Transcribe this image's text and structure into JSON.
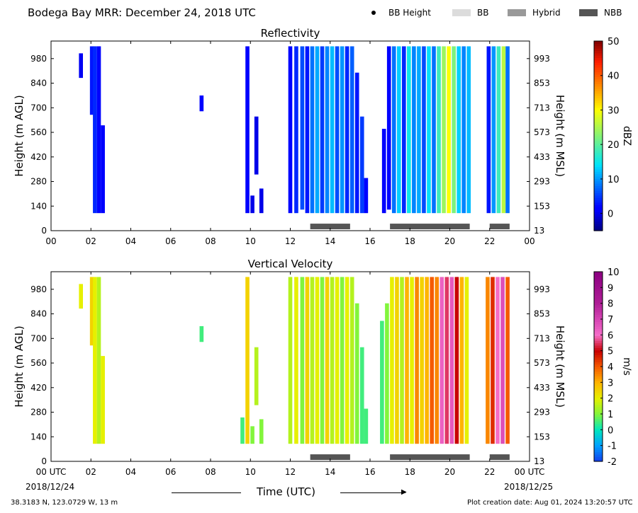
{
  "header": {
    "title": "Bodega Bay MRR:  December 24, 2018 UTC",
    "legend": [
      {
        "label": "BB Height",
        "kind": "dot",
        "color": "#000000"
      },
      {
        "label": "BB",
        "kind": "swatch",
        "color": "#dcdcdc"
      },
      {
        "label": "Hybrid",
        "kind": "swatch",
        "color": "#999999"
      },
      {
        "label": "NBB",
        "kind": "swatch",
        "color": "#555555"
      }
    ]
  },
  "footer": {
    "xaxis_label": "Time (UTC)",
    "start_date": "2018/12/24",
    "end_date": "2018/12/25",
    "location": "38.3183 N, 123.0729 W, 13 m",
    "creation": "Plot creation date: Aug 01, 2024 13:20:57 UTC"
  },
  "chart_data": [
    {
      "type": "heatmap",
      "title": "Reflectivity",
      "ylabel": "Height (m AGL)",
      "y2label": "Height (m MSL)",
      "xlim": [
        0,
        24
      ],
      "ylim": [
        0,
        1080
      ],
      "x_ticks": [
        "00",
        "02",
        "04",
        "06",
        "08",
        "10",
        "12",
        "14",
        "16",
        "18",
        "20",
        "22",
        "00"
      ],
      "y_ticks": [
        0,
        140,
        280,
        420,
        560,
        700,
        840,
        980
      ],
      "y2_ticks": [
        13,
        153,
        293,
        433,
        573,
        713,
        853,
        993
      ],
      "colorbar": {
        "label": "dBZ",
        "min": -5,
        "max": 50,
        "ticks": [
          0,
          10,
          20,
          30,
          40,
          50
        ]
      },
      "data_columns": [
        {
          "t": 1.5,
          "v": 0.5,
          "bot": 870,
          "top": 1010
        },
        {
          "t": 2.05,
          "v": 3,
          "bot": 660,
          "top": 1050
        },
        {
          "t": 2.2,
          "v": 4,
          "bot": 100,
          "top": 1050
        },
        {
          "t": 2.4,
          "v": 2,
          "bot": 100,
          "top": 1050
        },
        {
          "t": 2.6,
          "v": 1,
          "bot": 100,
          "top": 600
        },
        {
          "t": 7.55,
          "v": 2,
          "bot": 680,
          "top": 770
        },
        {
          "t": 9.85,
          "v": 1,
          "bot": 100,
          "top": 1050
        },
        {
          "t": 10.1,
          "v": 0,
          "bot": 100,
          "top": 200
        },
        {
          "t": 10.3,
          "v": 0,
          "bot": 320,
          "top": 650
        },
        {
          "t": 10.55,
          "v": 0,
          "bot": 100,
          "top": 240
        },
        {
          "t": 12.0,
          "v": 2,
          "bot": 100,
          "top": 1050
        },
        {
          "t": 12.3,
          "v": 4,
          "bot": 100,
          "top": 1050
        },
        {
          "t": 12.6,
          "v": 6,
          "bot": 120,
          "top": 1050
        },
        {
          "t": 12.85,
          "v": 3,
          "bot": 100,
          "top": 1050
        },
        {
          "t": 13.1,
          "v": 8,
          "bot": 100,
          "top": 1050
        },
        {
          "t": 13.35,
          "v": 11,
          "bot": 100,
          "top": 1050
        },
        {
          "t": 13.6,
          "v": 5,
          "bot": 100,
          "top": 1050
        },
        {
          "t": 13.85,
          "v": 9,
          "bot": 100,
          "top": 1050
        },
        {
          "t": 14.1,
          "v": 12,
          "bot": 100,
          "top": 1050
        },
        {
          "t": 14.35,
          "v": 6,
          "bot": 100,
          "top": 1050
        },
        {
          "t": 14.6,
          "v": 10,
          "bot": 100,
          "top": 1050
        },
        {
          "t": 14.85,
          "v": 4,
          "bot": 100,
          "top": 1050
        },
        {
          "t": 15.1,
          "v": 7,
          "bot": 100,
          "top": 1050
        },
        {
          "t": 15.35,
          "v": 3,
          "bot": 100,
          "top": 900
        },
        {
          "t": 15.6,
          "v": 5,
          "bot": 100,
          "top": 650
        },
        {
          "t": 15.8,
          "v": 2,
          "bot": 100,
          "top": 300
        },
        {
          "t": 16.7,
          "v": 1,
          "bot": 100,
          "top": 580
        },
        {
          "t": 16.95,
          "v": 2,
          "bot": 120,
          "top": 1050
        },
        {
          "t": 17.2,
          "v": 8,
          "bot": 100,
          "top": 1050
        },
        {
          "t": 17.45,
          "v": 13,
          "bot": 100,
          "top": 1050
        },
        {
          "t": 17.7,
          "v": 4,
          "bot": 100,
          "top": 1050
        },
        {
          "t": 17.95,
          "v": 15,
          "bot": 100,
          "top": 1050
        },
        {
          "t": 18.2,
          "v": 9,
          "bot": 100,
          "top": 1050
        },
        {
          "t": 18.45,
          "v": 11,
          "bot": 100,
          "top": 1050
        },
        {
          "t": 18.7,
          "v": 6,
          "bot": 100,
          "top": 1050
        },
        {
          "t": 18.95,
          "v": 14,
          "bot": 100,
          "top": 1050
        },
        {
          "t": 19.2,
          "v": 8,
          "bot": 100,
          "top": 1050
        },
        {
          "t": 19.45,
          "v": 18,
          "bot": 100,
          "top": 1050
        },
        {
          "t": 19.7,
          "v": 24,
          "bot": 100,
          "top": 1050
        },
        {
          "t": 19.95,
          "v": 30,
          "bot": 100,
          "top": 1050
        },
        {
          "t": 20.2,
          "v": 22,
          "bot": 100,
          "top": 1050
        },
        {
          "t": 20.45,
          "v": 13,
          "bot": 100,
          "top": 1050
        },
        {
          "t": 20.7,
          "v": 9,
          "bot": 100,
          "top": 1050
        },
        {
          "t": 20.95,
          "v": 12,
          "bot": 100,
          "top": 1050
        },
        {
          "t": 21.95,
          "v": 3,
          "bot": 100,
          "top": 1050
        },
        {
          "t": 22.2,
          "v": 10,
          "bot": 100,
          "top": 1050
        },
        {
          "t": 22.45,
          "v": 18,
          "bot": 100,
          "top": 1050
        },
        {
          "t": 22.7,
          "v": 26,
          "bot": 100,
          "top": 1050
        },
        {
          "t": 22.9,
          "v": 8,
          "bot": 100,
          "top": 1050
        }
      ]
    },
    {
      "type": "heatmap",
      "title": "Vertical Velocity",
      "ylabel": "Height (m AGL)",
      "y2label": "Height (m MSL)",
      "xlim": [
        0,
        24
      ],
      "ylim": [
        0,
        1080
      ],
      "x_ticks": [
        "00 UTC",
        "02",
        "04",
        "06",
        "08",
        "10",
        "12",
        "14",
        "16",
        "18",
        "20",
        "22",
        "00 UTC"
      ],
      "y_ticks": [
        0,
        140,
        280,
        420,
        560,
        700,
        840,
        980
      ],
      "y2_ticks": [
        13,
        153,
        293,
        433,
        573,
        713,
        853,
        993
      ],
      "colorbar": {
        "label": "m/s",
        "min": -2,
        "max": 10,
        "ticks": [
          -2,
          -1,
          0,
          1,
          2,
          3,
          4,
          5,
          6,
          7,
          8,
          9,
          10
        ]
      },
      "data_columns": [
        {
          "t": 1.5,
          "v": 2,
          "bot": 870,
          "top": 1010
        },
        {
          "t": 2.05,
          "v": 2.5,
          "bot": 660,
          "top": 1050
        },
        {
          "t": 2.2,
          "v": 2,
          "bot": 100,
          "top": 1050
        },
        {
          "t": 2.4,
          "v": 1.5,
          "bot": 100,
          "top": 1050
        },
        {
          "t": 2.6,
          "v": 2,
          "bot": 100,
          "top": 600
        },
        {
          "t": 7.55,
          "v": 0.5,
          "bot": 680,
          "top": 770
        },
        {
          "t": 9.6,
          "v": 0.5,
          "bot": 100,
          "top": 250
        },
        {
          "t": 9.85,
          "v": 2.5,
          "bot": 100,
          "top": 1050
        },
        {
          "t": 10.1,
          "v": 1,
          "bot": 100,
          "top": 200
        },
        {
          "t": 10.3,
          "v": 1.5,
          "bot": 320,
          "top": 650
        },
        {
          "t": 10.55,
          "v": 1,
          "bot": 100,
          "top": 240
        },
        {
          "t": 12.0,
          "v": 1.5,
          "bot": 100,
          "top": 1050
        },
        {
          "t": 12.3,
          "v": 2,
          "bot": 100,
          "top": 1050
        },
        {
          "t": 12.6,
          "v": 1,
          "bot": 100,
          "top": 1050
        },
        {
          "t": 12.85,
          "v": 2.5,
          "bot": 100,
          "top": 1050
        },
        {
          "t": 13.1,
          "v": 1.5,
          "bot": 100,
          "top": 1050
        },
        {
          "t": 13.35,
          "v": 2,
          "bot": 100,
          "top": 1050
        },
        {
          "t": 13.6,
          "v": 1,
          "bot": 100,
          "top": 1050
        },
        {
          "t": 13.85,
          "v": 2.5,
          "bot": 100,
          "top": 1050
        },
        {
          "t": 14.1,
          "v": 1.5,
          "bot": 100,
          "top": 1050
        },
        {
          "t": 14.35,
          "v": 2,
          "bot": 100,
          "top": 1050
        },
        {
          "t": 14.6,
          "v": 1,
          "bot": 100,
          "top": 1050
        },
        {
          "t": 14.85,
          "v": 2,
          "bot": 100,
          "top": 1050
        },
        {
          "t": 15.1,
          "v": 1.5,
          "bot": 100,
          "top": 1050
        },
        {
          "t": 15.35,
          "v": 1,
          "bot": 100,
          "top": 900
        },
        {
          "t": 15.6,
          "v": 0.5,
          "bot": 100,
          "top": 650
        },
        {
          "t": 15.8,
          "v": 0.5,
          "bot": 100,
          "top": 300
        },
        {
          "t": 16.6,
          "v": 0.5,
          "bot": 100,
          "top": 800
        },
        {
          "t": 16.85,
          "v": 1,
          "bot": 100,
          "top": 900
        },
        {
          "t": 17.1,
          "v": 2,
          "bot": 100,
          "top": 1050
        },
        {
          "t": 17.35,
          "v": 2.5,
          "bot": 100,
          "top": 1050
        },
        {
          "t": 17.6,
          "v": 1.5,
          "bot": 100,
          "top": 1050
        },
        {
          "t": 17.85,
          "v": 3,
          "bot": 100,
          "top": 1050
        },
        {
          "t": 18.1,
          "v": 2,
          "bot": 100,
          "top": 1050
        },
        {
          "t": 18.35,
          "v": 3.5,
          "bot": 100,
          "top": 1050
        },
        {
          "t": 18.6,
          "v": 2.5,
          "bot": 100,
          "top": 1050
        },
        {
          "t": 18.85,
          "v": 3,
          "bot": 100,
          "top": 1050
        },
        {
          "t": 19.1,
          "v": 4,
          "bot": 100,
          "top": 1050
        },
        {
          "t": 19.35,
          "v": 3.5,
          "bot": 100,
          "top": 1050
        },
        {
          "t": 19.6,
          "v": 6.3,
          "bot": 100,
          "top": 1050
        },
        {
          "t": 19.85,
          "v": 5.5,
          "bot": 100,
          "top": 1050
        },
        {
          "t": 20.1,
          "v": 6.5,
          "bot": 100,
          "top": 1050
        },
        {
          "t": 20.35,
          "v": 5,
          "bot": 100,
          "top": 1050
        },
        {
          "t": 20.6,
          "v": 3,
          "bot": 100,
          "top": 1050
        },
        {
          "t": 20.85,
          "v": 2,
          "bot": 100,
          "top": 1050
        },
        {
          "t": 21.9,
          "v": 3.5,
          "bot": 100,
          "top": 1050
        },
        {
          "t": 22.15,
          "v": 4.5,
          "bot": 100,
          "top": 1050
        },
        {
          "t": 22.4,
          "v": 6,
          "bot": 100,
          "top": 1050
        },
        {
          "t": 22.65,
          "v": 6.8,
          "bot": 100,
          "top": 1050
        },
        {
          "t": 22.9,
          "v": 4,
          "bot": 100,
          "top": 1050
        }
      ]
    }
  ],
  "regime_bars": [
    {
      "type": "NBB",
      "start": 13.0,
      "end": 15.0
    },
    {
      "type": "NBB",
      "start": 17.0,
      "end": 21.0
    },
    {
      "type": "NBB",
      "start": 22.0,
      "end": 23.0
    }
  ]
}
